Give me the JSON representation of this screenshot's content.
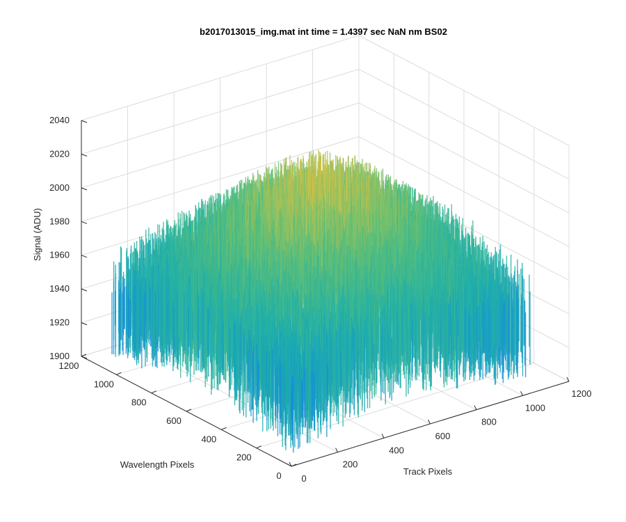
{
  "chart_data": {
    "type": "surface",
    "title": "b2017013015_img.mat int time = 1.4397 sec  NaN nm BS02",
    "xlabel": "Track Pixels",
    "ylabel": "Wavelength Pixels",
    "zlabel": "Signal (ADU)",
    "xlim": [
      0,
      1200
    ],
    "ylim": [
      0,
      1200
    ],
    "zlim": [
      1900,
      2040
    ],
    "x_ticks": [
      "0",
      "200",
      "400",
      "600",
      "800",
      "1000",
      "1200"
    ],
    "y_ticks": [
      "0",
      "200",
      "400",
      "600",
      "800",
      "1000",
      "1200"
    ],
    "z_ticks": [
      "1900",
      "1920",
      "1940",
      "1960",
      "1980",
      "2000",
      "2020",
      "2040"
    ],
    "grid": true,
    "colormap": "parula",
    "colors": {
      "low": "#0072bd",
      "mid": "#21b5a6",
      "high": "#e9c43a",
      "grid": "#dcdcdc",
      "axis": "#262626"
    },
    "surface_summary": {
      "data_extent_x": [
        0,
        1024
      ],
      "data_extent_y": [
        0,
        1024
      ],
      "baseline_signal": 1935,
      "center_peak_signal": 2000,
      "max_signal": 2035,
      "min_signal": 1900
    }
  }
}
